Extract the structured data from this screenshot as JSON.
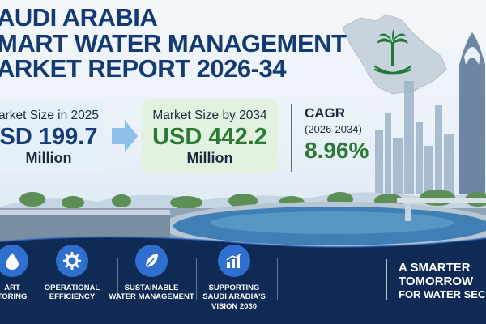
{
  "title": {
    "line1": "AUDI ARABIA",
    "line2": "MART WATER MANAGEMENT",
    "line3": "ARKET REPORT 2026-34"
  },
  "stats": {
    "size_2025": {
      "label": "arket Size in 2025",
      "value": "SD 199.7",
      "unit": "Million"
    },
    "size_2034": {
      "label": "Market Size by 2034",
      "value": "USD 442.2",
      "unit": "Million"
    },
    "cagr": {
      "label": "CAGR",
      "period": "(2026-2034)",
      "value": "8.96%"
    }
  },
  "features": [
    {
      "icon": "water-drop-icon",
      "label_l1": "ART",
      "label_l2": "TORING"
    },
    {
      "icon": "gear-icon",
      "label_l1": "OPERATIONAL",
      "label_l2": "EFFICIENCY"
    },
    {
      "icon": "leaf-icon",
      "label_l1": "SUSTAINABLE",
      "label_l2": "WATER MANAGEMENT"
    },
    {
      "icon": "bar-chart-icon",
      "label_l1": "SUPPORTING",
      "label_l2": "SAUDI ARABIA'S",
      "label_l3": "VISION 2030"
    }
  ],
  "tagline": {
    "line1": "A SMARTER",
    "line2": "TOMORROW",
    "line3": "FOR WATER SEC"
  },
  "colors": {
    "navy": "#133a73",
    "green": "#2a7a33",
    "band": "#0f2a55",
    "icon_blue": "#2f6fd0",
    "map_green": "#1f7a3a"
  }
}
